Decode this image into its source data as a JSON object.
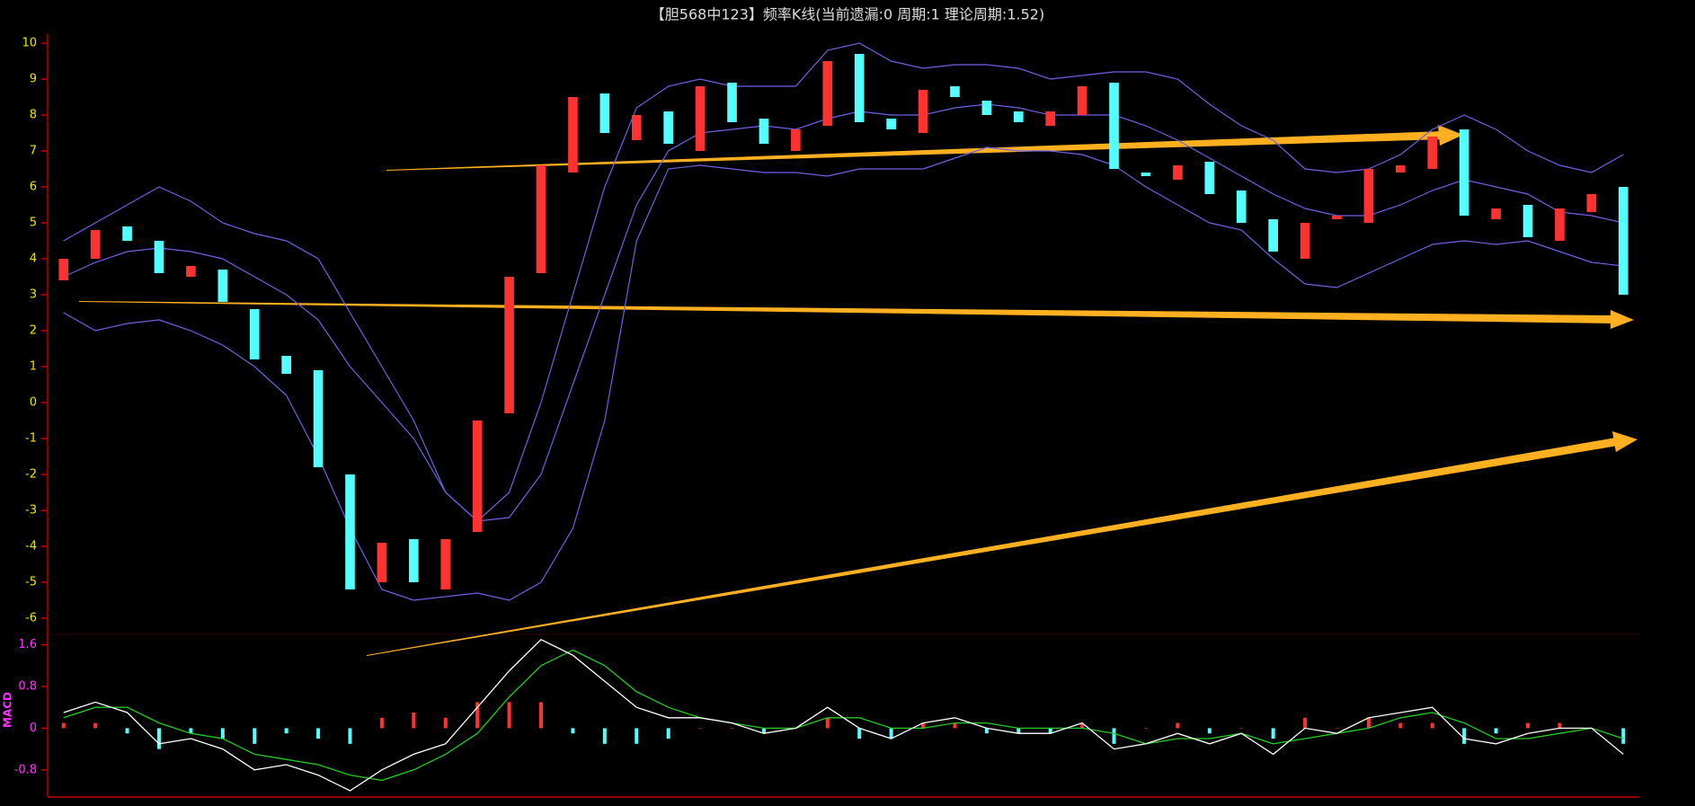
{
  "chart_data": [
    {
      "type": "candlestick",
      "title": "【胆568中123】频率K线(当前遗漏:0 周期:1 理论周期:1.52)",
      "ylim": [
        -6.4,
        10.2
      ],
      "yticks": [
        -6,
        -5,
        -4,
        -3,
        -2,
        -1,
        0,
        1,
        2,
        3,
        4,
        5,
        6,
        7,
        8,
        9,
        10
      ],
      "up_color": "#ff3232",
      "down_color": "#54ffff",
      "band_color": "#6d62e0",
      "open": [
        3.4,
        4.0,
        4.9,
        4.5,
        3.5,
        3.7,
        2.6,
        1.3,
        0.9,
        -2.0,
        -5.0,
        -3.8,
        -5.2,
        -3.6,
        -0.3,
        3.6,
        6.4,
        8.6,
        7.3,
        8.1,
        7.0,
        8.9,
        7.9,
        7.0,
        7.7,
        9.7,
        7.9,
        7.5,
        8.8,
        8.4,
        8.1,
        7.7,
        8.0,
        8.9,
        6.4,
        6.2,
        6.7,
        5.9,
        5.1,
        4.0,
        5.1,
        5.0,
        6.4,
        6.5,
        7.6,
        5.1,
        5.5,
        4.5,
        5.3,
        6.0
      ],
      "close": [
        4.0,
        4.8,
        4.5,
        3.6,
        3.8,
        2.8,
        1.2,
        0.8,
        -1.8,
        -5.2,
        -3.9,
        -5.0,
        -3.8,
        -0.5,
        3.5,
        6.6,
        8.5,
        7.5,
        8.0,
        7.2,
        8.8,
        7.8,
        7.2,
        7.6,
        9.5,
        7.8,
        7.6,
        8.7,
        8.5,
        8.0,
        7.8,
        8.1,
        8.8,
        6.5,
        6.3,
        6.6,
        5.8,
        5.0,
        4.2,
        5.0,
        5.2,
        6.5,
        6.6,
        7.4,
        5.2,
        5.4,
        4.6,
        5.4,
        5.8,
        3.0
      ],
      "upper": [
        4.5,
        5.0,
        5.5,
        6.0,
        5.6,
        5.0,
        4.7,
        4.5,
        4.0,
        2.5,
        1.0,
        -0.5,
        -2.5,
        -3.3,
        -2.5,
        0,
        3.0,
        6.0,
        8.2,
        8.8,
        9.0,
        8.8,
        8.8,
        8.8,
        9.8,
        10.0,
        9.5,
        9.3,
        9.4,
        9.4,
        9.3,
        9.0,
        9.1,
        9.2,
        9.2,
        9.0,
        8.3,
        7.7,
        7.3,
        6.5,
        6.4,
        6.5,
        6.9,
        7.6,
        8.0,
        7.6,
        7.0,
        6.6,
        6.4,
        6.9
      ],
      "mid": [
        3.5,
        3.9,
        4.2,
        4.3,
        4.2,
        4.0,
        3.5,
        3.0,
        2.3,
        1.0,
        0,
        -1,
        -2.5,
        -3.3,
        -3.2,
        -2,
        0.5,
        3,
        5.5,
        7,
        7.5,
        7.6,
        7.7,
        7.6,
        7.9,
        8.1,
        8.0,
        8.0,
        8.2,
        8.3,
        8.2,
        8.0,
        8.0,
        8.0,
        7.7,
        7.3,
        6.8,
        6.3,
        5.8,
        5.4,
        5.2,
        5.2,
        5.5,
        5.9,
        6.2,
        6.0,
        5.8,
        5.3,
        5.2,
        5.0
      ],
      "lower": [
        2.5,
        2.0,
        2.2,
        2.3,
        2.0,
        1.6,
        1.0,
        0.2,
        -1.5,
        -3.5,
        -5.2,
        -5.5,
        -5.4,
        -5.3,
        -5.5,
        -5.0,
        -3.5,
        -0.5,
        4.5,
        6.5,
        6.6,
        6.5,
        6.4,
        6.4,
        6.3,
        6.5,
        6.5,
        6.5,
        6.8,
        7.1,
        7.0,
        7.0,
        6.9,
        6.6,
        6.0,
        5.5,
        5.0,
        4.8,
        4.0,
        3.3,
        3.2,
        3.6,
        4.0,
        4.4,
        4.5,
        4.4,
        4.5,
        4.2,
        3.9,
        3.8
      ]
    },
    {
      "type": "macd",
      "label": "MACD",
      "ylim": [
        -1.2,
        1.8
      ],
      "yticks": [
        -0.8,
        0,
        0.8,
        1.6
      ],
      "dif_color": "#ffffff",
      "dea_color": "#22cc22",
      "up_color": "#ff3232",
      "down_color": "#54ffff",
      "dif": [
        0.3,
        0.5,
        0.3,
        -0.3,
        -0.2,
        -0.4,
        -0.8,
        -0.7,
        -0.9,
        -1.2,
        -0.8,
        -0.5,
        -0.3,
        0.4,
        1.1,
        1.7,
        1.4,
        0.9,
        0.4,
        0.2,
        0.2,
        0.1,
        -0.1,
        0.0,
        0.4,
        0.0,
        -0.2,
        0.1,
        0.2,
        0.0,
        -0.1,
        -0.1,
        0.1,
        -0.4,
        -0.3,
        -0.1,
        -0.3,
        -0.1,
        -0.5,
        0.0,
        -0.1,
        0.2,
        0.3,
        0.4,
        -0.2,
        -0.3,
        -0.1,
        0.0,
        0.0,
        -0.5
      ],
      "dea": [
        0.2,
        0.4,
        0.4,
        0.1,
        -0.1,
        -0.2,
        -0.5,
        -0.6,
        -0.7,
        -0.9,
        -1.0,
        -0.8,
        -0.5,
        -0.1,
        0.6,
        1.2,
        1.5,
        1.2,
        0.7,
        0.4,
        0.2,
        0.1,
        0.0,
        0.0,
        0.2,
        0.2,
        0.0,
        0.0,
        0.1,
        0.1,
        0.0,
        0.0,
        0.0,
        -0.1,
        -0.3,
        -0.2,
        -0.2,
        -0.1,
        -0.3,
        -0.2,
        -0.1,
        0.0,
        0.2,
        0.3,
        0.1,
        -0.2,
        -0.2,
        -0.1,
        0.0,
        -0.2
      ],
      "hist": [
        0.1,
        0.1,
        -0.1,
        -0.4,
        -0.1,
        -0.2,
        -0.3,
        -0.1,
        -0.2,
        -0.3,
        0.2,
        0.3,
        0.2,
        0.5,
        0.5,
        0.5,
        -0.1,
        -0.3,
        -0.3,
        -0.2,
        0,
        0,
        -0.1,
        0,
        0.2,
        -0.2,
        -0.2,
        0.1,
        0.1,
        -0.1,
        -0.1,
        -0.1,
        0.1,
        -0.3,
        0,
        0.1,
        -0.1,
        0,
        -0.2,
        0.2,
        0,
        0.2,
        0.1,
        0.1,
        -0.3,
        -0.1,
        0.1,
        0.1,
        0,
        -0.3
      ]
    }
  ]
}
